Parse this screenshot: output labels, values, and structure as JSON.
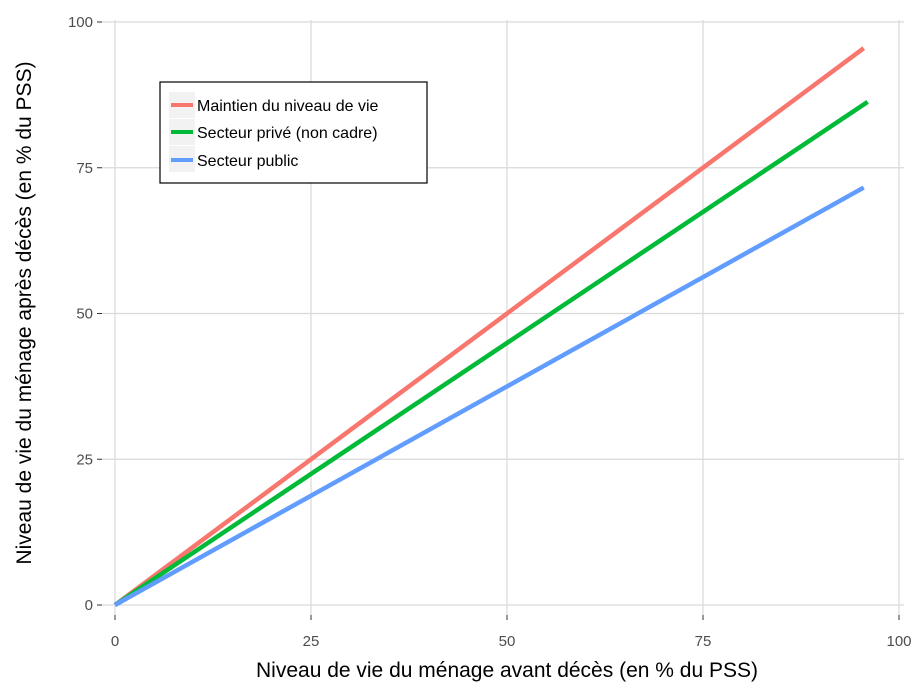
{
  "chart_data": {
    "type": "line",
    "title": "",
    "xlabel": "Niveau de vie du ménage avant décès (en % du PSS)",
    "ylabel": "Niveau de vie du ménage après décès (en % du PSS)",
    "xlim": [
      0,
      100
    ],
    "ylim": [
      0,
      100
    ],
    "x_ticks": [
      0,
      25,
      50,
      75,
      100
    ],
    "y_ticks": [
      0,
      25,
      50,
      75,
      100
    ],
    "x_tick_labels": [
      "0",
      "25",
      "50",
      "75",
      "100"
    ],
    "y_tick_labels": [
      "0",
      "25",
      "50",
      "75",
      "100"
    ],
    "grid": true,
    "legend_position": "top-left",
    "series": [
      {
        "name": "Maintien du niveau de vie",
        "color": "#F8766D",
        "x": [
          0,
          95.5
        ],
        "y": [
          0,
          95.5
        ]
      },
      {
        "name": "Secteur privé (non cadre)",
        "color": "#00BA38",
        "x": [
          0,
          96
        ],
        "y": [
          0,
          86.3
        ]
      },
      {
        "name": "Secteur public",
        "color": "#619CFF",
        "x": [
          0,
          95.5
        ],
        "y": [
          0,
          71.6
        ]
      }
    ]
  }
}
